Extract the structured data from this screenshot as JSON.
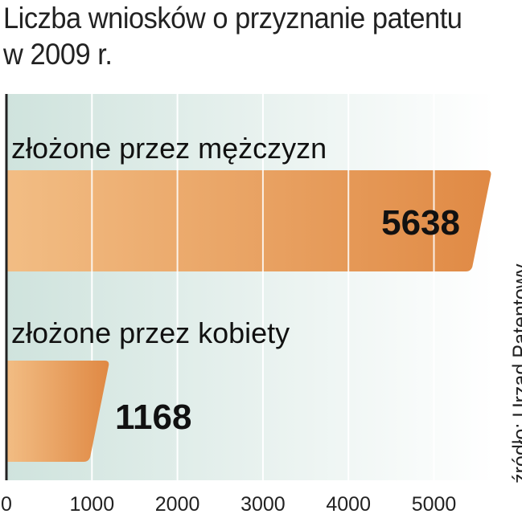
{
  "chart_data": {
    "type": "bar",
    "orientation": "horizontal",
    "title": "Liczba wniosków o przyznanie patentu w 2009 r.",
    "title_lines": [
      "Liczba wniosków o przyznanie patentu",
      "w 2009 r."
    ],
    "categories": [
      "złożone przez mężczyzn",
      "złożone przez kobiety"
    ],
    "values": [
      5638,
      1168
    ],
    "value_labels": [
      "5638",
      "1168"
    ],
    "xlim": [
      0,
      5700
    ],
    "x_ticks": [
      0,
      1000,
      2000,
      3000,
      4000,
      5000
    ],
    "x_tick_labels": [
      "0",
      "1000",
      "2000",
      "3000",
      "4000",
      "5000"
    ],
    "grid": true,
    "source": "źródło: Urząd Patentowy"
  },
  "colors": {
    "bar_light": "#f2bd84",
    "bar_dark": "#e08a45",
    "plot_bg_left": "#cfe3dd",
    "plot_bg_right": "#ffffff",
    "grid": "#ffffff",
    "axis": "#222222"
  }
}
